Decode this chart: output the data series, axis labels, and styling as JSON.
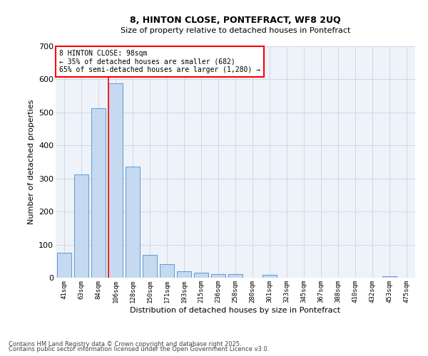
{
  "title_line1": "8, HINTON CLOSE, PONTEFRACT, WF8 2UQ",
  "title_line2": "Size of property relative to detached houses in Pontefract",
  "xlabel": "Distribution of detached houses by size in Pontefract",
  "ylabel": "Number of detached properties",
  "categories": [
    "41sqm",
    "63sqm",
    "84sqm",
    "106sqm",
    "128sqm",
    "150sqm",
    "171sqm",
    "193sqm",
    "215sqm",
    "236sqm",
    "258sqm",
    "280sqm",
    "301sqm",
    "323sqm",
    "345sqm",
    "367sqm",
    "388sqm",
    "410sqm",
    "432sqm",
    "453sqm",
    "475sqm"
  ],
  "values": [
    75,
    312,
    512,
    588,
    335,
    68,
    42,
    20,
    15,
    11,
    11,
    0,
    8,
    0,
    0,
    0,
    0,
    0,
    0,
    5,
    0
  ],
  "bar_color": "#c5d9f1",
  "bar_edge_color": "#5b9bd5",
  "grid_color": "#d0d8e8",
  "bg_color": "#eef2f9",
  "vline_color": "red",
  "vline_pos": 2.6,
  "annotation_text": "8 HINTON CLOSE: 98sqm\n← 35% of detached houses are smaller (682)\n65% of semi-detached houses are larger (1,280) →",
  "annotation_box_color": "red",
  "ylim": [
    0,
    700
  ],
  "yticks": [
    0,
    100,
    200,
    300,
    400,
    500,
    600,
    700
  ],
  "footer_line1": "Contains HM Land Registry data © Crown copyright and database right 2025.",
  "footer_line2": "Contains public sector information licensed under the Open Government Licence v3.0."
}
